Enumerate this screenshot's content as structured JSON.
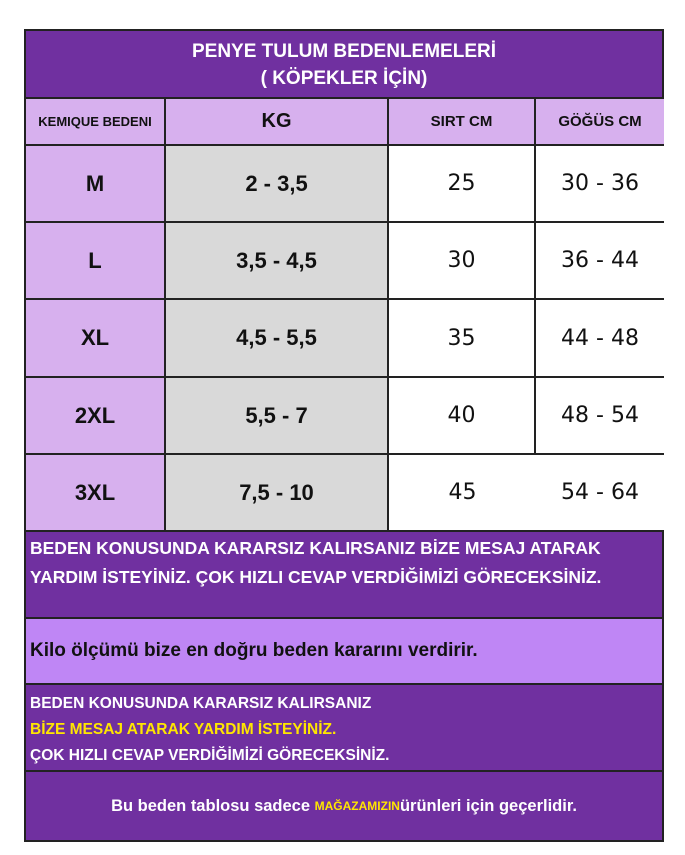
{
  "title": {
    "line1": "PENYE TULUM BEDENLEMELERİ",
    "line2": "( KÖPEKLER İÇİN)"
  },
  "headers": [
    "KEMIQUE BEDENI",
    "KG",
    "SIRT CM",
    "GÖĞÜS CM"
  ],
  "rows": [
    [
      "M",
      "2 - 3,5",
      "25",
      "30 - 36"
    ],
    [
      "L",
      "3,5 - 4,5",
      "30",
      "36 - 44"
    ],
    [
      "XL",
      "4,5 - 5,5",
      "35",
      "44 - 48"
    ],
    [
      "2XL",
      "5,5 - 7",
      "40",
      "48 - 54"
    ],
    [
      "3XL",
      "7,5 - 10",
      "45",
      "54 - 64"
    ]
  ],
  "footer": {
    "note1": "BEDEN KONUSUNDA KARARSIZ KALIRSANIZ BİZE MESAJ ATARAK YARDIM İSTEYİNİZ. ÇOK HIZLI CEVAP VERDİĞİMİZİ GÖRECEKSİNİZ.",
    "note2": "Kilo ölçümü bize  en doğru beden kararını verdirir.",
    "note3_line1": "BEDEN KONUSUNDA KARARSIZ KALIRSANIZ",
    "note3_line2": "BİZE MESAJ ATARAK YARDIM İSTEYİNİZ.",
    "note3_line3": "ÇOK HIZLI CEVAP VERDİĞİMİZİ GÖRECEKSİNİZ.",
    "note4_pre": "Bu beden tablosu sadece ",
    "note4_highlight": "MAĞAZAMIZIN",
    "note4_post": "ürünleri için geçerlidir."
  },
  "colors": {
    "purple": "#7030a0",
    "lavender": "#d7b0ee",
    "gray": "#d9d9d9",
    "band": "#bf86f5",
    "highlight": "#ffe600"
  }
}
